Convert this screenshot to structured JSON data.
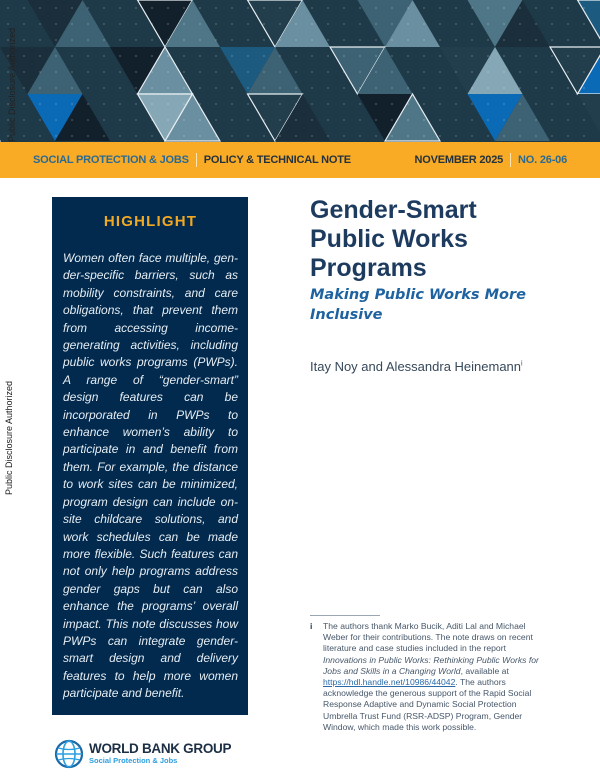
{
  "watermark": "Public Disclosure Authorized",
  "header": {
    "unit": "SOCIAL PROTECTION & JOBS",
    "series": "POLICY & TECHNICAL NOTE",
    "date": "NOVEMBER 2025",
    "number": "NO. 26-06"
  },
  "colors": {
    "bar": "#f9ab25",
    "navy": "#022a4e",
    "accent_blue": "#0a6ab5",
    "highlight_title": "#f2a922"
  },
  "highlight": {
    "title": "HIGHLIGHT",
    "body": "Women often face multiple, gen­der-specific barriers, such as mobility constraints, and care ob­ligations, that prevent them from accessing income-generating ac­tivities, including public works programs (PWPs). A range of “gen­der-smart” design features can be incorporated in PWPs to enhance women’s ability to participate in and benefit from them. For exam­ple, the distance to work sites can be minimized, program design can include on-site childcare solutions, and work schedules can be made more flexible. Such features can not only help programs address gender gaps but can also enhance the programs’ overall impact. This note discusses how PWPs can in­tegrate gender-smart design and delivery features to help more women participate and benefit."
  },
  "title": "Gender-Smart Public Works Programs",
  "subtitle": "Making Public Works More Inclusive",
  "authors": "Itay Noy and Alessandra Heinemann",
  "authors_mark": "i",
  "footnote": {
    "marker": "i",
    "text_1": "The authors thank Marko Bucik, Aditi Lal and Michael Weber for their contributions. The note draws on recent literature and case studies included in the report ",
    "report_title": "Innovations in Public Works: Rethinking Public Works for Jobs and Skills in a Changing World",
    "text_2": ", available at ",
    "link": "https://hdl.handle.net/10986/44042",
    "text_3": ". The authors acknowledge the generous support of the Rapid Social Response Adaptive and Dynamic Social Protection Umbrella Trust Fund (RSR-ADSP) Program, Gender Window, which made this work possible."
  },
  "logo": {
    "name": "WORLD BANK GROUP",
    "sub": "Social Protection & Jobs",
    "icon": "globe-icon"
  }
}
